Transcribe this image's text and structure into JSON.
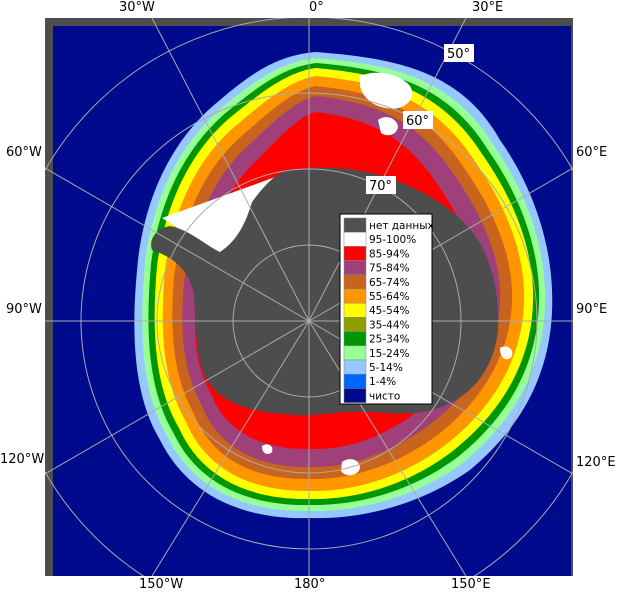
{
  "map": {
    "longitude_labels": {
      "top": [
        "30°W",
        "0°",
        "30°E"
      ],
      "left": [
        "60°W",
        "90°W",
        "120°W"
      ],
      "right": [
        "60°E",
        "90°E",
        "120°E"
      ],
      "bottom": [
        "150°W",
        "180°",
        "150°E"
      ]
    },
    "latitude_labels": [
      "50°",
      "60°",
      "70°"
    ],
    "colors": {
      "open_water": "#000a8c",
      "frame_gray": "#4d4d4d",
      "graticule": "#aaaaaa"
    }
  },
  "legend": {
    "items": [
      {
        "label": "нет данных",
        "color": "#505050"
      },
      {
        "label": "95-100%",
        "color": "#ffffff"
      },
      {
        "label": "85-94%",
        "color": "#ff0000"
      },
      {
        "label": "75-84%",
        "color": "#a0407a"
      },
      {
        "label": "65-74%",
        "color": "#c8641e"
      },
      {
        "label": "55-64%",
        "color": "#ff9600"
      },
      {
        "label": "45-54%",
        "color": "#ffff00"
      },
      {
        "label": "35-44%",
        "color": "#8ca000"
      },
      {
        "label": "25-34%",
        "color": "#009600"
      },
      {
        "label": "15-24%",
        "color": "#96ff96"
      },
      {
        "label": "5-14%",
        "color": "#96c8ff"
      },
      {
        "label": "1-4%",
        "color": "#0064ff"
      },
      {
        "label": "чисто",
        "color": "#000a8c"
      }
    ]
  }
}
